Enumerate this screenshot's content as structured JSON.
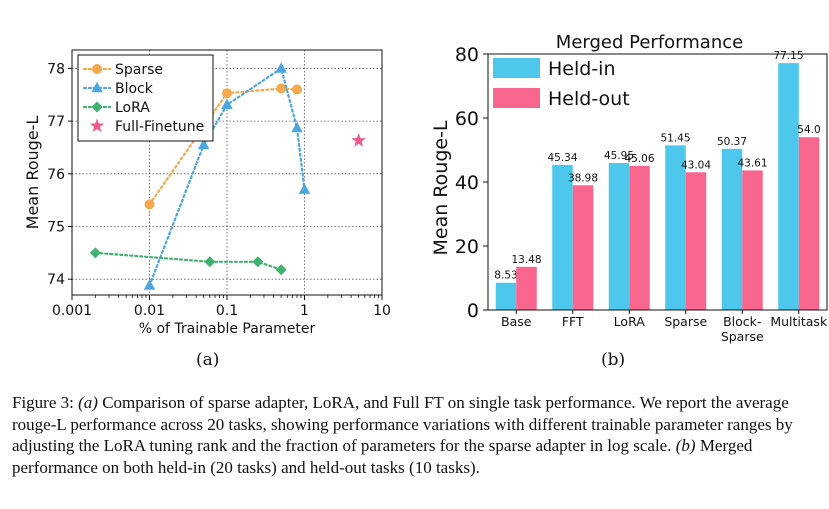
{
  "chart_data": [
    {
      "type": "scatter",
      "xlabel": "% of Trainable Parameter",
      "ylabel": "Mean Rouge-L",
      "xscale": "log",
      "xlim": [
        0.001,
        10
      ],
      "ylim": [
        73.7,
        78.35
      ],
      "xticks": [
        "0.001",
        "0.01",
        "0.1",
        "1",
        "10"
      ],
      "yticks": [
        "74",
        "75",
        "76",
        "77",
        "78"
      ],
      "grid": "dotted",
      "legend_position": "top-left",
      "series": [
        {
          "name": "Sparse",
          "marker": "circle",
          "color": "#f5a84e",
          "line": "dotted",
          "x": [
            0.01,
            0.1,
            0.5,
            0.8
          ],
          "y": [
            75.42,
            77.53,
            77.62,
            77.6
          ]
        },
        {
          "name": "Block",
          "marker": "triangle",
          "color": "#4ca6e0",
          "line": "dotted",
          "x": [
            0.01,
            0.05,
            0.1,
            0.5,
            0.8,
            1.0
          ],
          "y": [
            73.88,
            76.55,
            77.31,
            78.0,
            76.87,
            75.7
          ]
        },
        {
          "name": "LoRA",
          "marker": "diamond",
          "color": "#3db36f",
          "line": "dotted",
          "x": [
            0.002,
            0.06,
            0.25,
            0.5
          ],
          "y": [
            74.5,
            74.33,
            74.33,
            74.18
          ]
        },
        {
          "name": "Full-Finetune",
          "marker": "star",
          "color": "#ef5a8e",
          "line": "none",
          "x": [
            5
          ],
          "y": [
            76.63
          ]
        }
      ]
    },
    {
      "type": "bar",
      "title": "Merged Performance",
      "xlabel": "",
      "ylabel": "Mean Rouge-L",
      "ylim": [
        0,
        80
      ],
      "yticks": [
        "0",
        "20",
        "40",
        "60",
        "80"
      ],
      "legend_position": "top-left",
      "categories": [
        "Base",
        "FFT",
        "LoRA",
        "Sparse",
        "Block-\nSparse",
        "Multitask"
      ],
      "series": [
        {
          "name": "Held-in",
          "color": "#4dc8ec",
          "values": [
            8.53,
            45.34,
            45.95,
            51.45,
            50.37,
            77.15
          ],
          "labels": [
            "8.53",
            "45.34",
            "45.95",
            "51.45",
            "50.37",
            "77.15"
          ]
        },
        {
          "name": "Held-out",
          "color": "#f8668e",
          "values": [
            13.48,
            38.98,
            45.06,
            43.04,
            43.61,
            54.0
          ],
          "labels": [
            "13.48",
            "38.98",
            "45.06",
            "43.04",
            "43.61",
            "54.0"
          ]
        }
      ]
    }
  ],
  "sublabels": {
    "a": "(a)",
    "b": "(b)"
  },
  "caption": {
    "prefix": "Figure 3: ",
    "a_tag": "(a)",
    "a_text": " Comparison of sparse adapter, LoRA, and Full FT on single task performance. We report the average rouge-L performance across 20 tasks, showing performance variations with different trainable parameter ranges by adjusting the LoRA tuning rank and the fraction of parameters for the sparse adapter in log scale. ",
    "b_tag": "(b)",
    "b_text": " Merged performance on both held-in (20 tasks) and held-out tasks (10 tasks)."
  }
}
